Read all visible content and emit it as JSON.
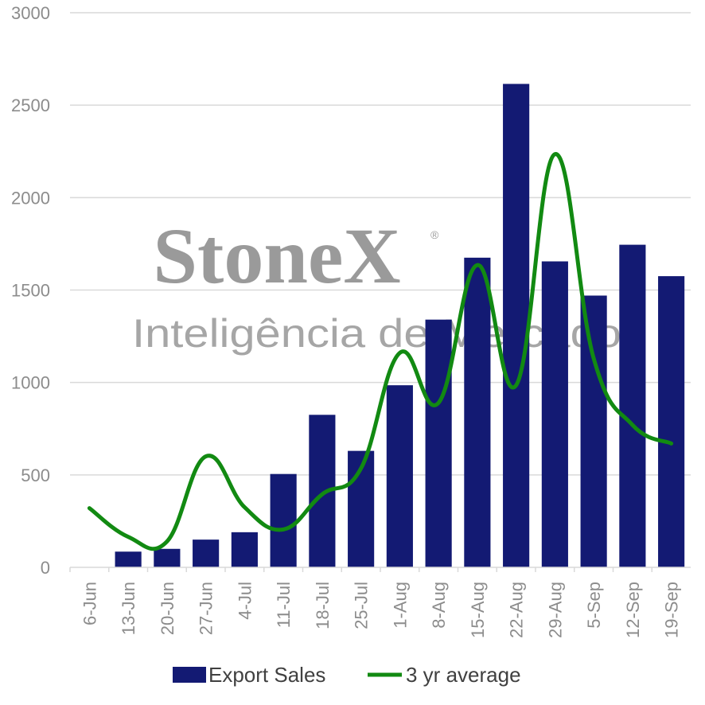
{
  "watermark": {
    "logo": "StoneX",
    "subtitle": "Inteligência de Mercado"
  },
  "colors": {
    "bar": "#131a73",
    "line": "#128a12",
    "grid": "#d9d9d9",
    "axis_text": "#8c8c8c"
  },
  "chart_data": {
    "type": "bar",
    "categories": [
      "6-Jun",
      "13-Jun",
      "20-Jun",
      "27-Jun",
      "4-Jul",
      "11-Jul",
      "18-Jul",
      "25-Jul",
      "1-Aug",
      "8-Aug",
      "15-Aug",
      "22-Aug",
      "29-Aug",
      "5-Sep",
      "12-Sep",
      "19-Sep"
    ],
    "yticks": [
      0,
      500,
      1000,
      1500,
      2000,
      2500,
      3000
    ],
    "ylim": [
      0,
      3000
    ],
    "grid": true,
    "legend_position": "bottom",
    "series": [
      {
        "name": "Export Sales",
        "type": "bar",
        "values": [
          0,
          85,
          100,
          150,
          190,
          505,
          825,
          630,
          985,
          1340,
          1675,
          2615,
          1655,
          1470,
          1745,
          1575
        ]
      },
      {
        "name": "3 yr average",
        "type": "line",
        "values": [
          320,
          165,
          140,
          600,
          325,
          205,
          395,
          535,
          1160,
          890,
          1635,
          985,
          2235,
          1130,
          770,
          670
        ]
      }
    ]
  }
}
